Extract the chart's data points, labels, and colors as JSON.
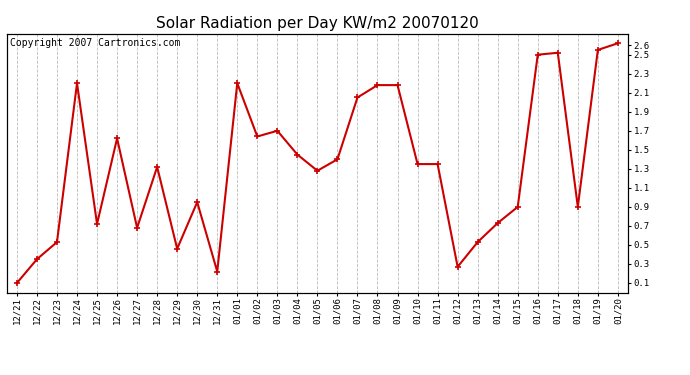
{
  "title": "Solar Radiation per Day KW/m2 20070120",
  "copyright": "Copyright 2007 Cartronics.com",
  "labels": [
    "12/21",
    "12/22",
    "12/23",
    "12/24",
    "12/25",
    "12/26",
    "12/27",
    "12/28",
    "12/29",
    "12/30",
    "12/31",
    "01/01",
    "01/02",
    "01/03",
    "01/04",
    "01/05",
    "01/06",
    "01/07",
    "01/08",
    "01/09",
    "01/10",
    "01/11",
    "01/12",
    "01/13",
    "01/14",
    "01/15",
    "01/16",
    "01/17",
    "01/18",
    "01/19",
    "01/20"
  ],
  "values": [
    0.1,
    0.35,
    0.53,
    2.2,
    0.72,
    1.62,
    0.68,
    1.32,
    0.46,
    0.95,
    0.22,
    2.2,
    1.64,
    1.7,
    1.45,
    1.28,
    1.4,
    2.05,
    2.18,
    2.18,
    1.35,
    1.35,
    0.27,
    0.53,
    0.73,
    0.9,
    2.5,
    2.52,
    0.9,
    2.55,
    2.62
  ],
  "line_color": "#cc0000",
  "marker": "+",
  "marker_size": 5,
  "marker_edge_width": 1.2,
  "line_width": 1.5,
  "background_color": "#ffffff",
  "plot_bg_color": "#ffffff",
  "grid_color": "#bbbbbb",
  "grid_linestyle": "--",
  "title_fontsize": 11,
  "copyright_fontsize": 7,
  "right_yticks": [
    0.1,
    0.3,
    0.5,
    0.7,
    0.9,
    1.1,
    1.3,
    1.5,
    1.7,
    1.9,
    2.1,
    2.3,
    2.5,
    2.6
  ],
  "right_ytick_labels": [
    "0.1",
    "0.3",
    "0.5",
    "0.7",
    "0.9",
    "1.1",
    "1.3",
    "1.5",
    "1.7",
    "1.9",
    "2.1",
    "2.3",
    "2.5",
    "2.6"
  ],
  "ylim": [
    0.0,
    2.72
  ],
  "figwidth": 6.9,
  "figheight": 3.75,
  "dpi": 100
}
